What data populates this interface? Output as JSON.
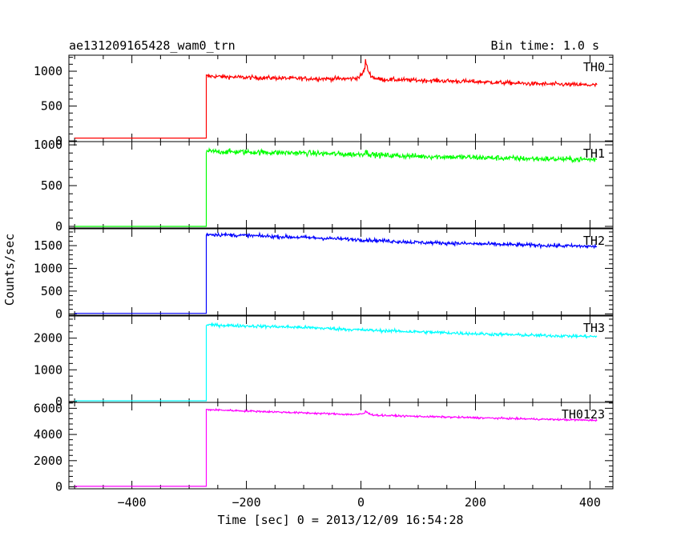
{
  "header": {
    "title": "ae131209165428_wam0_trn",
    "bin_time": "Bin time: 1.0 s"
  },
  "chart_data": {
    "type": "line",
    "x": {
      "label": "Time [sec] 0 = 2013/12/09 16:54:28",
      "range": [
        -510,
        440
      ],
      "ticks": [
        -400,
        -200,
        0,
        200,
        400
      ],
      "tick_labels": [
        "−400",
        "−200",
        "0",
        "200",
        "400"
      ]
    },
    "ylabel": "Counts/sec",
    "grid": false,
    "panels": [
      {
        "name": "TH0",
        "color": "#ff0000",
        "ylim": [
          -10,
          1230
        ],
        "ticks": [
          0,
          500,
          1000
        ],
        "tick_labels": [
          "0",
          "500",
          "1000"
        ],
        "series": {
          "start": -500,
          "end": 412,
          "onset": -270,
          "pre_level": 40,
          "post_points": [
            [
              -270,
              930
            ],
            [
              -200,
              910
            ],
            [
              -100,
              895
            ],
            [
              0,
              890
            ],
            [
              100,
              870
            ],
            [
              200,
              850
            ],
            [
              300,
              820
            ],
            [
              412,
              800
            ]
          ],
          "noise": 30,
          "spike": {
            "x": 8,
            "height": 270,
            "width": 6
          }
        }
      },
      {
        "name": "TH1",
        "color": "#00ff00",
        "ylim": [
          -20,
          1040
        ],
        "ticks": [
          0,
          500,
          1000
        ],
        "tick_labels": [
          "0",
          "500",
          "1000"
        ],
        "series": {
          "start": -500,
          "end": 412,
          "onset": -270,
          "pre_level": 0,
          "post_points": [
            [
              -270,
              920
            ],
            [
              -100,
              900
            ],
            [
              0,
              880
            ],
            [
              100,
              860
            ],
            [
              200,
              845
            ],
            [
              300,
              830
            ],
            [
              412,
              820
            ]
          ],
          "noise": 33,
          "spike": {
            "x": 8,
            "height": 40,
            "width": 6
          }
        }
      },
      {
        "name": "TH2",
        "color": "#0000ff",
        "ylim": [
          -30,
          1870
        ],
        "ticks": [
          0,
          500,
          1000,
          1500
        ],
        "tick_labels": [
          "0",
          "500",
          "1000",
          "1500"
        ],
        "series": {
          "start": -500,
          "end": 412,
          "onset": -270,
          "pre_level": 10,
          "post_points": [
            [
              -270,
              1750
            ],
            [
              -100,
              1680
            ],
            [
              0,
              1630
            ],
            [
              100,
              1570
            ],
            [
              200,
              1540
            ],
            [
              300,
              1510
            ],
            [
              412,
              1480
            ]
          ],
          "noise": 40,
          "spike": {
            "x": 8,
            "height": 0,
            "width": 6
          }
        }
      },
      {
        "name": "TH3",
        "color": "#00ffff",
        "ylim": [
          -30,
          2700
        ],
        "ticks": [
          0,
          1000,
          2000
        ],
        "tick_labels": [
          "0",
          "1000",
          "2000"
        ],
        "series": {
          "start": -500,
          "end": 412,
          "onset": -270,
          "pre_level": 20,
          "post_points": [
            [
              -270,
              2420
            ],
            [
              -100,
              2340
            ],
            [
              0,
              2260
            ],
            [
              100,
              2200
            ],
            [
              200,
              2140
            ],
            [
              300,
              2090
            ],
            [
              412,
              2050
            ]
          ],
          "noise": 50,
          "spike": {
            "x": 8,
            "height": 0,
            "width": 6
          }
        }
      },
      {
        "name": "TH0123",
        "color": "#ff00ff",
        "ylim": [
          -150,
          6450
        ],
        "ticks": [
          0,
          2000,
          4000,
          6000
        ],
        "tick_labels": [
          "0",
          "2000",
          "4000",
          "6000"
        ],
        "series": {
          "start": -500,
          "end": 412,
          "onset": -270,
          "pre_level": 40,
          "post_points": [
            [
              -270,
              5900
            ],
            [
              -100,
              5650
            ],
            [
              0,
              5500
            ],
            [
              100,
              5380
            ],
            [
              200,
              5280
            ],
            [
              300,
              5180
            ],
            [
              412,
              5080
            ]
          ],
          "noise": 70,
          "spike": {
            "x": 8,
            "height": 300,
            "width": 6
          }
        }
      }
    ]
  }
}
